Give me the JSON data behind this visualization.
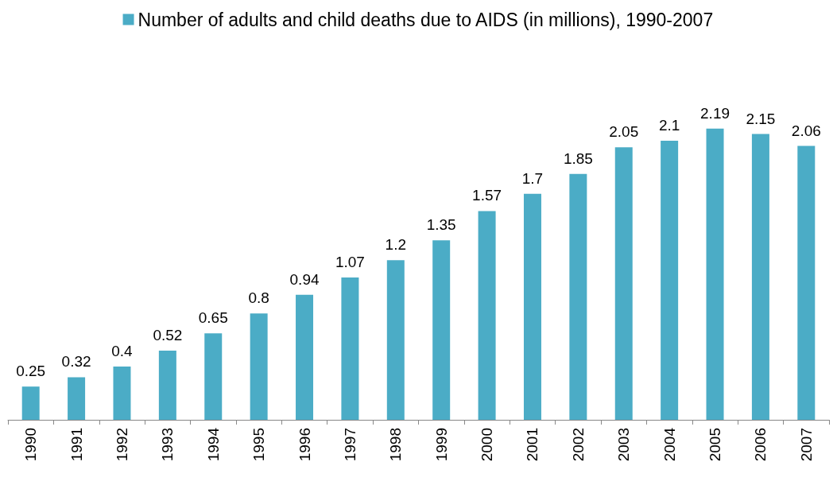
{
  "chart_data": {
    "type": "bar",
    "categories": [
      "1990",
      "1991",
      "1992",
      "1993",
      "1994",
      "1995",
      "1996",
      "1997",
      "1998",
      "1999",
      "2000",
      "2001",
      "2002",
      "2003",
      "2004",
      "2005",
      "2006",
      "2007"
    ],
    "series": [
      {
        "name": "Number of adults and child deaths due to AIDS (in millions), 1990-2007",
        "color": "#4bacc6",
        "values": [
          0.25,
          0.32,
          0.4,
          0.52,
          0.65,
          0.8,
          0.94,
          1.07,
          1.2,
          1.35,
          1.57,
          1.7,
          1.85,
          2.05,
          2.1,
          2.19,
          2.15,
          2.06
        ]
      }
    ],
    "data_labels": true,
    "legend": "top",
    "grid": false
  }
}
